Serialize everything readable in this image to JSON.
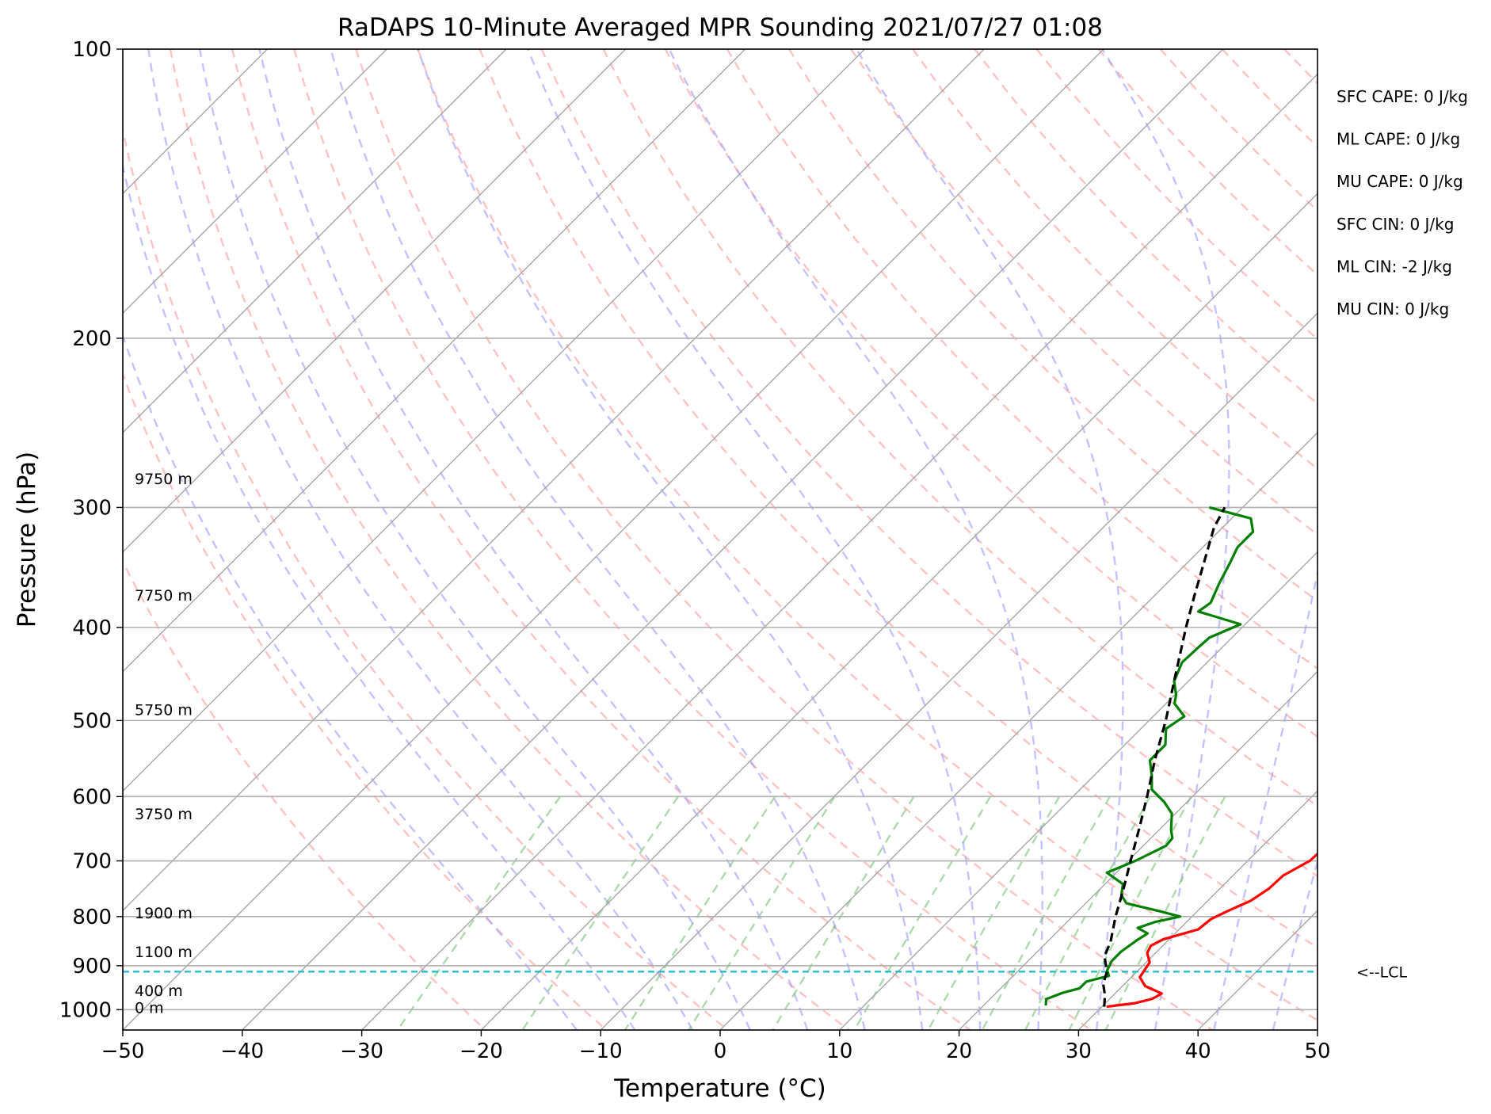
{
  "chart_data": {
    "type": "line",
    "title": "RaDAPS 10-Minute Averaged MPR Sounding 2021/07/27 01:08",
    "xlabel": "Temperature (°C)",
    "ylabel": "Pressure (hPa)",
    "x_ticks": [
      -50,
      -40,
      -30,
      -20,
      -10,
      0,
      10,
      20,
      30,
      40,
      50
    ],
    "x_tick_labels": [
      "−50",
      "−40",
      "−30",
      "−20",
      "−10",
      "0",
      "10",
      "20",
      "30",
      "40",
      "50"
    ],
    "y_ticks": [
      100,
      200,
      300,
      400,
      500,
      600,
      700,
      800,
      900,
      1000
    ],
    "y_tick_labels": [
      "100",
      "200",
      "300",
      "400",
      "500",
      "600",
      "700",
      "800",
      "900",
      "1000"
    ],
    "xlim": [
      -50,
      50
    ],
    "ylim": [
      1050,
      100
    ],
    "y_scale": "log",
    "skew_t": true,
    "grid": true,
    "height_labels": [
      {
        "p": 280,
        "text": "9750 m"
      },
      {
        "p": 370,
        "text": "7750 m"
      },
      {
        "p": 487,
        "text": "5750 m"
      },
      {
        "p": 625,
        "text": "3750 m"
      },
      {
        "p": 793,
        "text": "1900 m"
      },
      {
        "p": 870,
        "text": "1100 m"
      },
      {
        "p": 955,
        "text": "400 m"
      },
      {
        "p": 995,
        "text": "0 m"
      }
    ],
    "lcl": {
      "p": 913,
      "label": "<--LCL"
    },
    "stats": [
      "SFC CAPE: 0 J/kg",
      "ML CAPE: 0 J/kg",
      "MU CAPE: 0 J/kg",
      "SFC CIN: 0 J/kg",
      "ML CIN: -2 J/kg",
      "MU CIN: 0 J/kg"
    ],
    "series": [
      {
        "role": "temperature",
        "color": "#ff0000",
        "points": [
          [
            300,
            39.7
          ],
          [
            315,
            40.4
          ],
          [
            333,
            41.0
          ],
          [
            353,
            41.4
          ],
          [
            373,
            41.7
          ],
          [
            395,
            42.2
          ],
          [
            410,
            41.7
          ],
          [
            425,
            41.3
          ],
          [
            440,
            40.4
          ],
          [
            455,
            40.0
          ],
          [
            468,
            39.2
          ],
          [
            490,
            39.1
          ],
          [
            505,
            38.6
          ],
          [
            520,
            38.3
          ],
          [
            540,
            38.6
          ],
          [
            560,
            38.3
          ],
          [
            585,
            37.3
          ],
          [
            605,
            36.7
          ],
          [
            628,
            36.1
          ],
          [
            643,
            35.2
          ],
          [
            655,
            35.1
          ],
          [
            680,
            35.3
          ],
          [
            700,
            35.2
          ],
          [
            725,
            34.2
          ],
          [
            748,
            34.1
          ],
          [
            770,
            33.6
          ],
          [
            790,
            32.5
          ],
          [
            805,
            31.8
          ],
          [
            825,
            31.6
          ],
          [
            845,
            29.5
          ],
          [
            858,
            29.0
          ],
          [
            873,
            29.3
          ],
          [
            893,
            30.3
          ],
          [
            925,
            30.7
          ],
          [
            945,
            31.9
          ],
          [
            962,
            33.9
          ],
          [
            970,
            33.7
          ],
          [
            975,
            33.5
          ],
          [
            985,
            32.4
          ],
          [
            990,
            31.1
          ],
          [
            993,
            30.4
          ]
        ]
      },
      {
        "role": "dewpoint",
        "color": "#008000",
        "points": [
          [
            300,
            -2.8
          ],
          [
            308,
            1.6
          ],
          [
            318,
            2.9
          ],
          [
            330,
            2.9
          ],
          [
            343,
            3.6
          ],
          [
            360,
            4.4
          ],
          [
            377,
            5.3
          ],
          [
            385,
            5.0
          ],
          [
            397,
            9.6
          ],
          [
            410,
            8.1
          ],
          [
            420,
            8.0
          ],
          [
            435,
            7.9
          ],
          [
            455,
            8.8
          ],
          [
            470,
            10.1
          ],
          [
            480,
            10.7
          ],
          [
            495,
            12.6
          ],
          [
            510,
            12.1
          ],
          [
            530,
            13.4
          ],
          [
            550,
            13.4
          ],
          [
            570,
            14.8
          ],
          [
            590,
            16.0
          ],
          [
            608,
            18.1
          ],
          [
            625,
            19.7
          ],
          [
            650,
            21.0
          ],
          [
            663,
            21.8
          ],
          [
            675,
            21.9
          ],
          [
            700,
            20.6
          ],
          [
            720,
            19.2
          ],
          [
            740,
            21.5
          ],
          [
            760,
            22.3
          ],
          [
            775,
            23.4
          ],
          [
            790,
            26.9
          ],
          [
            800,
            29.0
          ],
          [
            810,
            27.4
          ],
          [
            822,
            26.4
          ],
          [
            833,
            27.7
          ],
          [
            845,
            27.4
          ],
          [
            870,
            27.0
          ],
          [
            890,
            27.0
          ],
          [
            910,
            27.4
          ],
          [
            922,
            28.0
          ],
          [
            935,
            26.6
          ],
          [
            950,
            26.6
          ],
          [
            960,
            25.6
          ],
          [
            975,
            24.7
          ],
          [
            990,
            25.2
          ]
        ]
      },
      {
        "role": "parcel",
        "color": "#000000",
        "style": "dashed",
        "points": [
          [
            993,
            30.2
          ],
          [
            966,
            29.3
          ],
          [
            940,
            28.2
          ],
          [
            913,
            27.5
          ],
          [
            880,
            26.0
          ],
          [
            850,
            25.3
          ],
          [
            800,
            23.6
          ],
          [
            750,
            22.0
          ],
          [
            700,
            20.2
          ],
          [
            650,
            18.3
          ],
          [
            600,
            16.2
          ],
          [
            550,
            13.8
          ],
          [
            500,
            11.4
          ],
          [
            450,
            8.5
          ],
          [
            400,
            5.3
          ],
          [
            370,
            3.3
          ],
          [
            340,
            1.2
          ],
          [
            315,
            -0.7
          ],
          [
            300,
            -1.5
          ]
        ]
      }
    ]
  }
}
